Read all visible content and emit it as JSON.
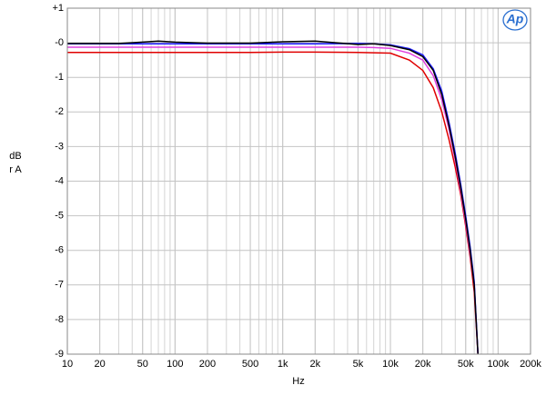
{
  "chart_data": {
    "type": "line",
    "logo": "Ap",
    "x_label": "Hz",
    "y_label": "dBr A",
    "x": [
      10,
      20,
      30,
      50,
      70,
      100,
      200,
      500,
      1000,
      2000,
      5000,
      7000,
      10000,
      15000,
      20000,
      25000,
      30000,
      35000,
      40000,
      45000,
      50000,
      55000,
      60000,
      65000
    ],
    "series": [
      {
        "name": "red",
        "color": "#e00000",
        "values": [
          -0.28,
          -0.28,
          -0.28,
          -0.28,
          -0.28,
          -0.28,
          -0.28,
          -0.28,
          -0.27,
          -0.27,
          -0.28,
          -0.29,
          -0.3,
          -0.5,
          -0.8,
          -1.3,
          -2.0,
          -2.8,
          -3.6,
          -4.4,
          -5.3,
          -6.2,
          -7.2,
          -9.0
        ]
      },
      {
        "name": "magenta",
        "color": "#e040e0",
        "values": [
          -0.13,
          -0.13,
          -0.13,
          -0.13,
          -0.13,
          -0.13,
          -0.13,
          -0.13,
          -0.13,
          -0.13,
          -0.13,
          -0.14,
          -0.16,
          -0.3,
          -0.5,
          -0.95,
          -1.65,
          -2.5,
          -3.4,
          -4.3,
          -5.2,
          -6.1,
          -7.0,
          -9.0
        ]
      },
      {
        "name": "blue",
        "color": "#1a1aff",
        "values": [
          -0.03,
          -0.03,
          -0.03,
          -0.03,
          -0.03,
          -0.03,
          -0.03,
          -0.03,
          -0.03,
          -0.03,
          -0.02,
          -0.03,
          -0.06,
          -0.17,
          -0.35,
          -0.75,
          -1.4,
          -2.3,
          -3.2,
          -4.1,
          -5.0,
          -5.9,
          -6.9,
          -9.0
        ]
      },
      {
        "name": "black",
        "color": "#000000",
        "values": [
          -0.02,
          -0.02,
          -0.02,
          0.02,
          0.05,
          0.02,
          -0.01,
          -0.01,
          0.03,
          0.05,
          -0.05,
          -0.03,
          -0.08,
          -0.2,
          -0.4,
          -0.8,
          -1.5,
          -2.4,
          -3.3,
          -4.2,
          -5.1,
          -6.0,
          -7.0,
          -9.0
        ]
      }
    ],
    "log_x": true,
    "grid": true,
    "minor_grid": true,
    "xlim": [
      10,
      200000
    ],
    "ylim": [
      -9,
      1
    ],
    "xticks": [
      10,
      20,
      50,
      100,
      200,
      500,
      {
        "value": 1000,
        "label": "1k"
      },
      {
        "value": 2000,
        "label": "2k"
      },
      {
        "value": 5000,
        "label": "5k"
      },
      {
        "value": 10000,
        "label": "10k"
      },
      {
        "value": 20000,
        "label": "20k"
      },
      {
        "value": 50000,
        "label": "50k"
      },
      {
        "value": 100000,
        "label": "100k"
      },
      {
        "value": 200000,
        "label": "200k"
      }
    ],
    "yticks": [
      {
        "value": 1,
        "label": "+1"
      },
      {
        "value": 0,
        "label": "-0"
      },
      -1,
      -2,
      -3,
      -4,
      -5,
      -6,
      -7,
      -8,
      -9
    ]
  }
}
